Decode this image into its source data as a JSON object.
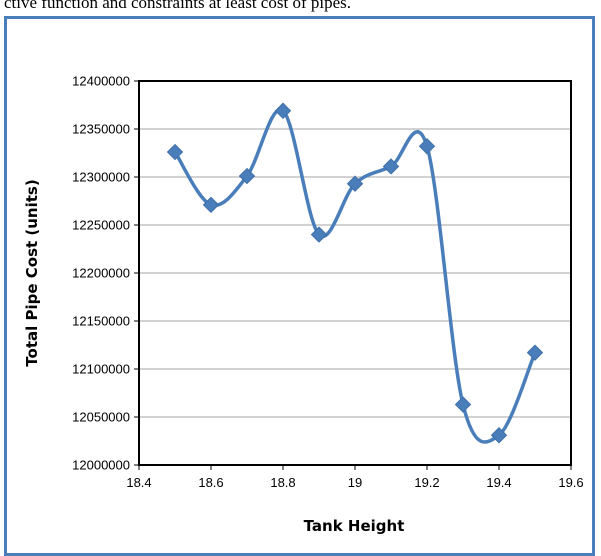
{
  "caption_fragment": "ctive function and constraints at least cost of pipes.",
  "chart_data": {
    "type": "line",
    "title": "",
    "xlabel": "Tank Height",
    "ylabel": "Total Pipe Cost (units)",
    "xlim": [
      18.4,
      19.6
    ],
    "ylim": [
      12000000,
      12400000
    ],
    "x_ticks": [
      "18.4",
      "18.6",
      "18.8",
      "19",
      "19.2",
      "19.4",
      "19.6"
    ],
    "y_ticks": [
      "12000000",
      "12050000",
      "12100000",
      "12150000",
      "12200000",
      "12250000",
      "12300000",
      "12350000",
      "12400000"
    ],
    "grid": "horizontal",
    "smoothed": true,
    "marker": "diamond",
    "color": "#4a7ebb",
    "series": [
      {
        "x": [
          18.5,
          18.6,
          18.7,
          18.8,
          18.9,
          19.0,
          19.1,
          19.2,
          19.3,
          19.4,
          19.5
        ],
        "values": [
          12326000,
          12271000,
          12301000,
          12369000,
          12240000,
          12293000,
          12311000,
          12332000,
          12063000,
          12031000,
          12117000
        ]
      }
    ]
  }
}
